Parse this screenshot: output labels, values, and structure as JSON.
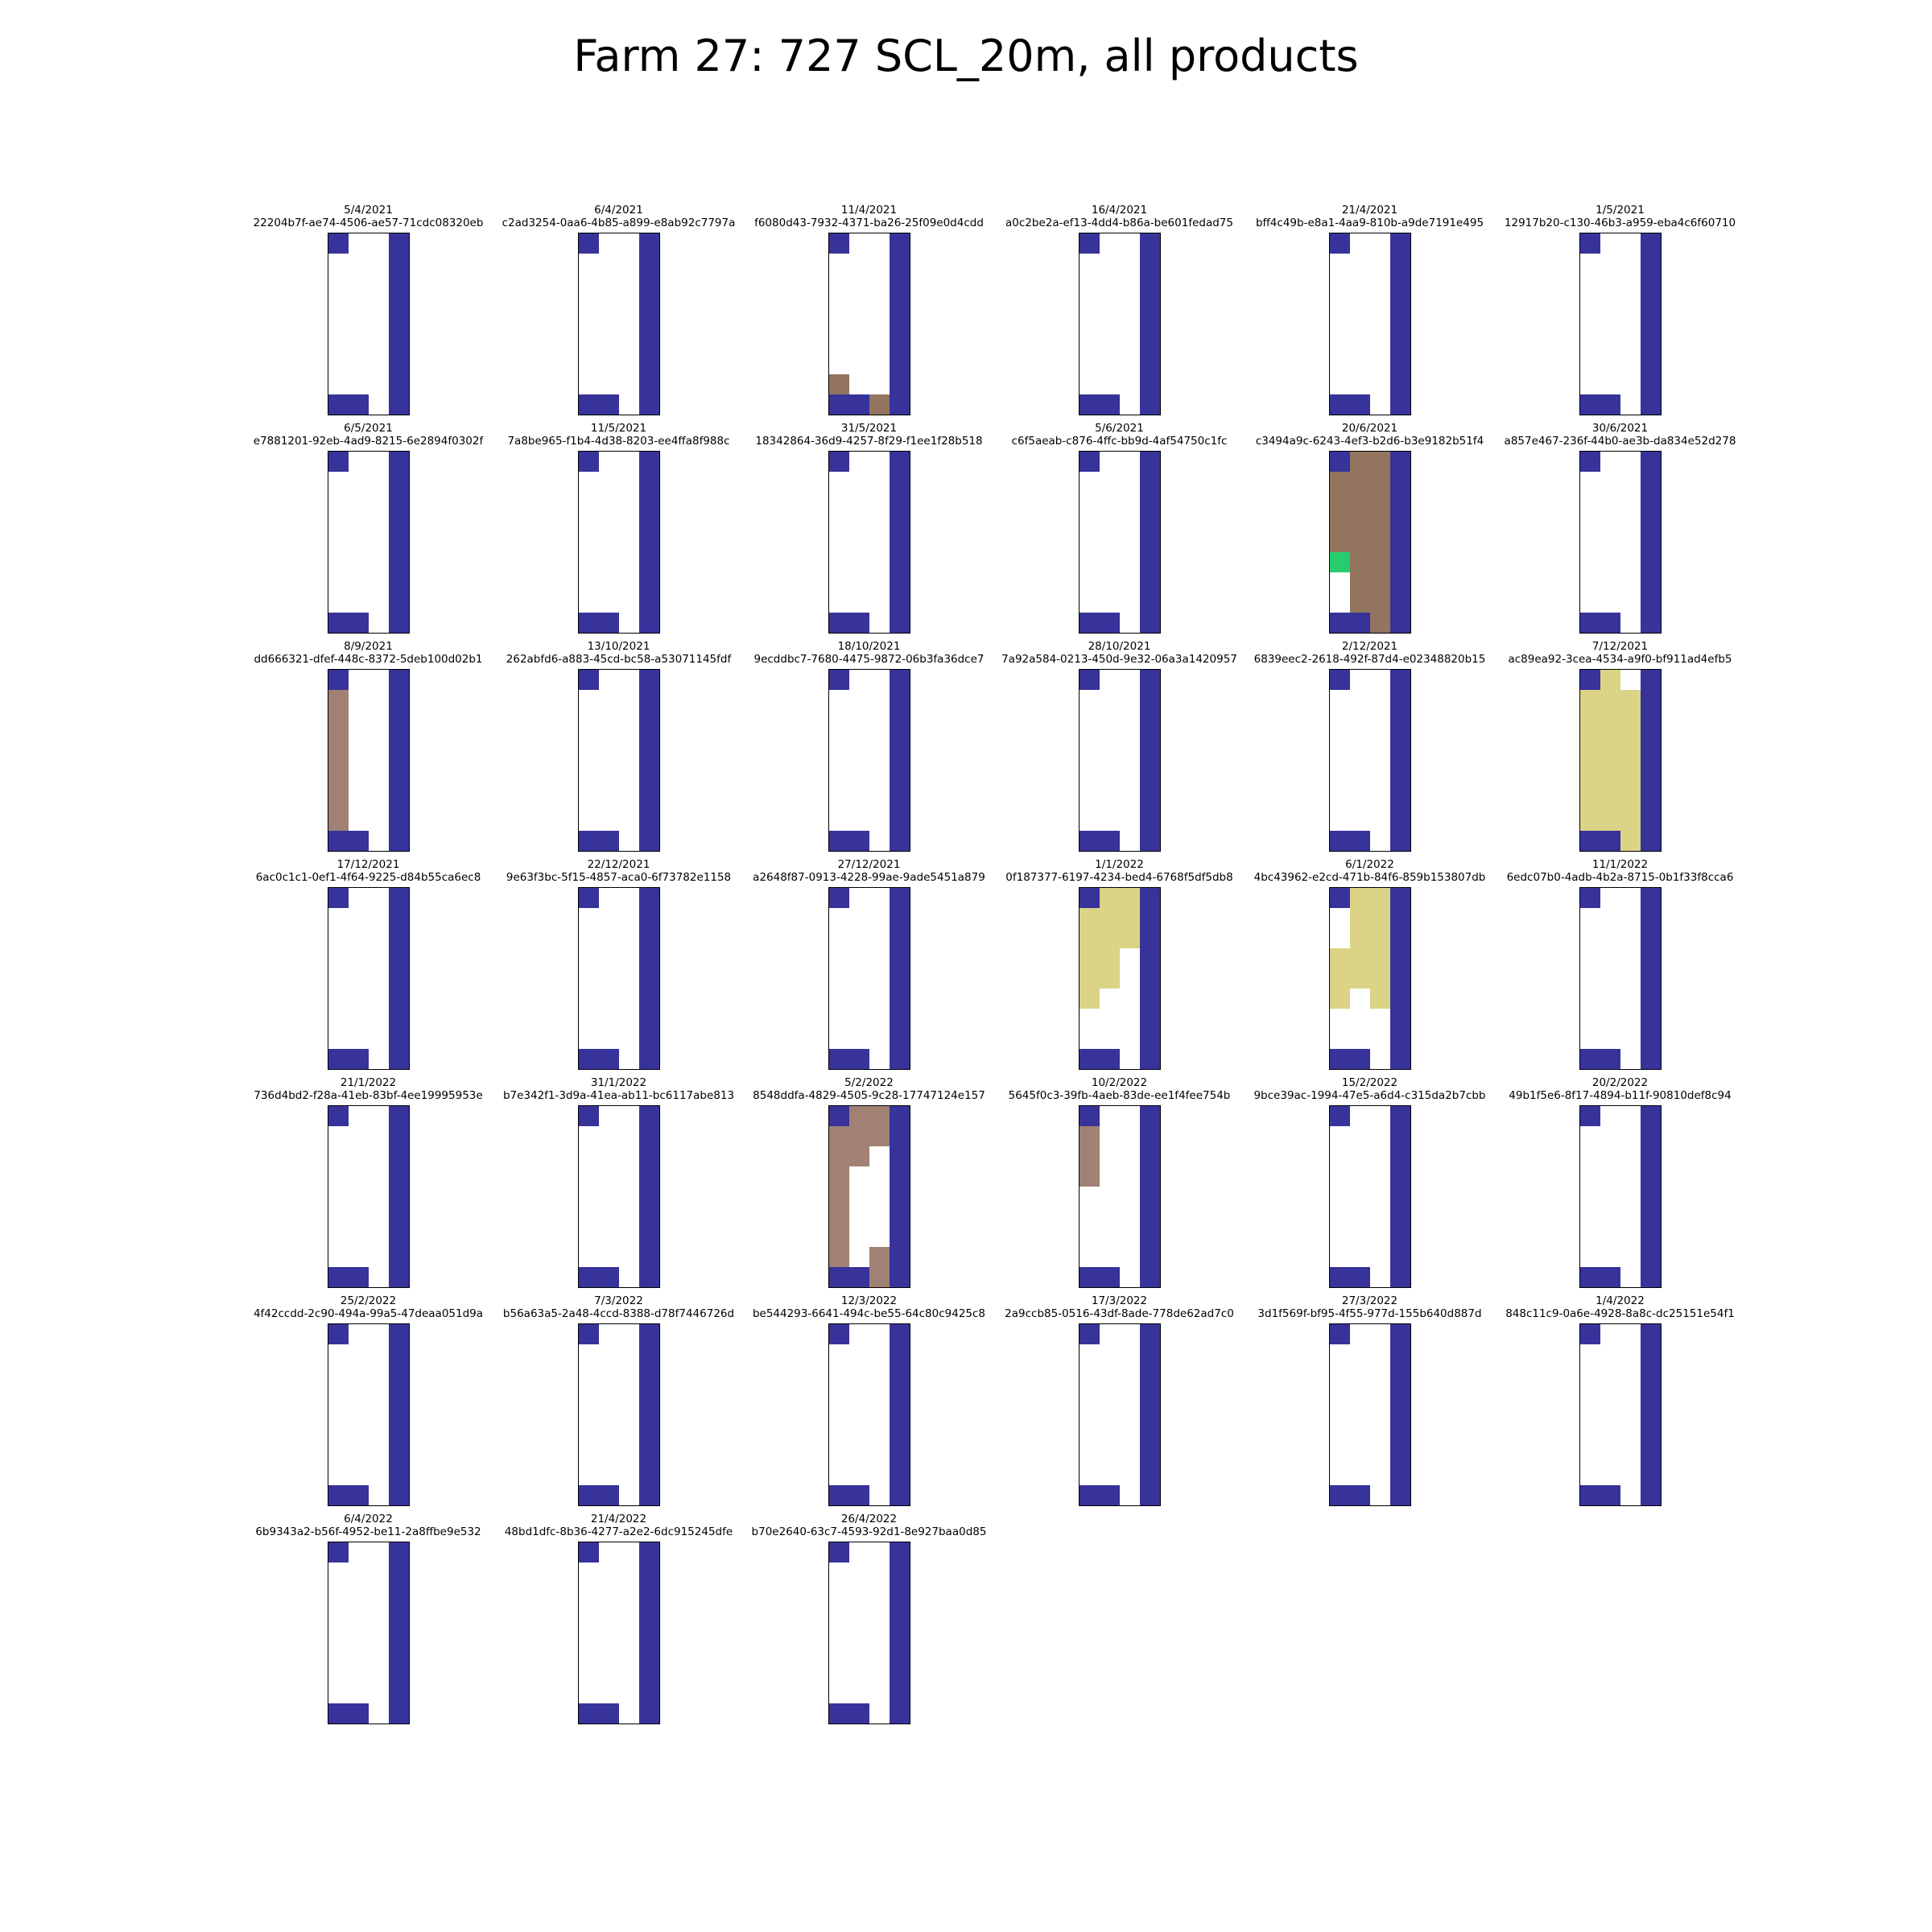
{
  "title": "Farm 27: 727 SCL_20m, all products",
  "chart_data": {
    "type": "heatmap",
    "title": "Farm 27: 727 SCL_20m, all products",
    "grid_rows": 9,
    "grid_cols": 4,
    "class_colors": {
      "0": "#ffffff",
      "1": "#37339a",
      "2": "#93745e",
      "3": "#a08174",
      "4": "#27cc6f",
      "5": "#dbd386"
    },
    "base_pattern": [
      [
        1,
        0,
        0,
        1
      ],
      [
        0,
        0,
        0,
        1
      ],
      [
        0,
        0,
        0,
        1
      ],
      [
        0,
        0,
        0,
        1
      ],
      [
        0,
        0,
        0,
        1
      ],
      [
        0,
        0,
        0,
        1
      ],
      [
        0,
        0,
        0,
        1
      ],
      [
        0,
        0,
        0,
        1
      ],
      [
        1,
        1,
        0,
        1
      ]
    ],
    "panels": [
      {
        "date": "5/4/2021",
        "id": "22204b7f-ae74-4506-ae57-71cdc08320eb",
        "overrides": []
      },
      {
        "date": "6/4/2021",
        "id": "c2ad3254-0aa6-4b85-a899-e8ab92c7797a",
        "overrides": []
      },
      {
        "date": "11/4/2021",
        "id": "f6080d43-7932-4371-ba26-25f09e0d4cdd",
        "overrides": [
          [
            7,
            0,
            2
          ],
          [
            8,
            2,
            2
          ]
        ]
      },
      {
        "date": "16/4/2021",
        "id": "a0c2be2a-ef13-4dd4-b86a-be601fedad75",
        "overrides": []
      },
      {
        "date": "21/4/2021",
        "id": "bff4c49b-e8a1-4aa9-810b-a9de7191e495",
        "overrides": []
      },
      {
        "date": "1/5/2021",
        "id": "12917b20-c130-46b3-a959-eba4c6f60710",
        "overrides": []
      },
      {
        "date": "6/5/2021",
        "id": "e7881201-92eb-4ad9-8215-6e2894f0302f",
        "overrides": []
      },
      {
        "date": "11/5/2021",
        "id": "7a8be965-f1b4-4d38-8203-ee4ffa8f988c",
        "overrides": []
      },
      {
        "date": "31/5/2021",
        "id": "18342864-36d9-4257-8f29-f1ee1f28b518",
        "overrides": []
      },
      {
        "date": "5/6/2021",
        "id": "c6f5aeab-c876-4ffc-bb9d-4af54750c1fc",
        "overrides": []
      },
      {
        "date": "20/6/2021",
        "id": "c3494a9c-6243-4ef3-b2d6-b3e9182b51f4",
        "overrides": [
          [
            0,
            1,
            2
          ],
          [
            0,
            2,
            2
          ],
          [
            1,
            0,
            2
          ],
          [
            1,
            1,
            2
          ],
          [
            1,
            2,
            2
          ],
          [
            2,
            0,
            2
          ],
          [
            2,
            1,
            2
          ],
          [
            2,
            2,
            2
          ],
          [
            3,
            0,
            2
          ],
          [
            3,
            1,
            2
          ],
          [
            3,
            2,
            2
          ],
          [
            4,
            0,
            2
          ],
          [
            4,
            1,
            2
          ],
          [
            4,
            2,
            2
          ],
          [
            5,
            0,
            4
          ],
          [
            5,
            1,
            2
          ],
          [
            5,
            2,
            2
          ],
          [
            6,
            1,
            2
          ],
          [
            6,
            2,
            2
          ],
          [
            7,
            1,
            2
          ],
          [
            7,
            2,
            2
          ],
          [
            8,
            2,
            2
          ]
        ]
      },
      {
        "date": "30/6/2021",
        "id": "a857e467-236f-44b0-ae3b-da834e52d278",
        "overrides": []
      },
      {
        "date": "8/9/2021",
        "id": "dd666321-dfef-448c-8372-5deb100d02b1",
        "overrides": [
          [
            1,
            0,
            3
          ],
          [
            2,
            0,
            3
          ],
          [
            3,
            0,
            3
          ],
          [
            4,
            0,
            3
          ],
          [
            5,
            0,
            3
          ],
          [
            6,
            0,
            3
          ],
          [
            7,
            0,
            3
          ]
        ]
      },
      {
        "date": "13/10/2021",
        "id": "262abfd6-a883-45cd-bc58-a53071145fdf",
        "overrides": []
      },
      {
        "date": "18/10/2021",
        "id": "9ecddbc7-7680-4475-9872-06b3fa36dce7",
        "overrides": []
      },
      {
        "date": "28/10/2021",
        "id": "7a92a584-0213-450d-9e32-06a3a1420957",
        "overrides": []
      },
      {
        "date": "2/12/2021",
        "id": "6839eec2-2618-492f-87d4-e02348820b15",
        "overrides": []
      },
      {
        "date": "7/12/2021",
        "id": "ac89ea92-3cea-4534-a9f0-bf911ad4efb5",
        "overrides": [
          [
            0,
            1,
            5
          ],
          [
            1,
            0,
            5
          ],
          [
            1,
            1,
            5
          ],
          [
            1,
            2,
            5
          ],
          [
            2,
            0,
            5
          ],
          [
            2,
            1,
            5
          ],
          [
            2,
            2,
            5
          ],
          [
            3,
            0,
            5
          ],
          [
            3,
            1,
            5
          ],
          [
            3,
            2,
            5
          ],
          [
            4,
            0,
            5
          ],
          [
            4,
            1,
            5
          ],
          [
            4,
            2,
            5
          ],
          [
            5,
            0,
            5
          ],
          [
            5,
            1,
            5
          ],
          [
            5,
            2,
            5
          ],
          [
            6,
            0,
            5
          ],
          [
            6,
            1,
            5
          ],
          [
            6,
            2,
            5
          ],
          [
            7,
            0,
            5
          ],
          [
            7,
            1,
            5
          ],
          [
            7,
            2,
            5
          ],
          [
            8,
            2,
            5
          ]
        ]
      },
      {
        "date": "17/12/2021",
        "id": "6ac0c1c1-0ef1-4f64-9225-d84b55ca6ec8",
        "overrides": []
      },
      {
        "date": "22/12/2021",
        "id": "9e63f3bc-5f15-4857-aca0-6f73782e1158",
        "overrides": []
      },
      {
        "date": "27/12/2021",
        "id": "a2648f87-0913-4228-99ae-9ade5451a879",
        "overrides": []
      },
      {
        "date": "1/1/2022",
        "id": "0f187377-6197-4234-bed4-6768f5df5db8",
        "overrides": [
          [
            0,
            1,
            5
          ],
          [
            0,
            2,
            5
          ],
          [
            1,
            0,
            5
          ],
          [
            1,
            1,
            5
          ],
          [
            1,
            2,
            5
          ],
          [
            2,
            0,
            5
          ],
          [
            2,
            1,
            5
          ],
          [
            2,
            2,
            5
          ],
          [
            3,
            0,
            5
          ],
          [
            3,
            1,
            5
          ],
          [
            4,
            0,
            5
          ],
          [
            4,
            1,
            5
          ],
          [
            5,
            0,
            5
          ]
        ]
      },
      {
        "date": "6/1/2022",
        "id": "4bc43962-e2cd-471b-84f6-859b153807db",
        "overrides": [
          [
            0,
            1,
            5
          ],
          [
            0,
            2,
            5
          ],
          [
            1,
            1,
            5
          ],
          [
            1,
            2,
            5
          ],
          [
            2,
            1,
            5
          ],
          [
            2,
            2,
            5
          ],
          [
            3,
            0,
            5
          ],
          [
            3,
            1,
            5
          ],
          [
            3,
            2,
            5
          ],
          [
            4,
            0,
            5
          ],
          [
            4,
            1,
            5
          ],
          [
            4,
            2,
            5
          ],
          [
            5,
            0,
            5
          ],
          [
            5,
            2,
            5
          ]
        ]
      },
      {
        "date": "11/1/2022",
        "id": "6edc07b0-4adb-4b2a-8715-0b1f33f8cca6",
        "overrides": []
      },
      {
        "date": "21/1/2022",
        "id": "736d4bd2-f28a-41eb-83bf-4ee19995953e",
        "overrides": []
      },
      {
        "date": "31/1/2022",
        "id": "b7e342f1-3d9a-41ea-ab11-bc6117abe813",
        "overrides": []
      },
      {
        "date": "5/2/2022",
        "id": "8548ddfa-4829-4505-9c28-17747124e157",
        "overrides": [
          [
            0,
            1,
            3
          ],
          [
            0,
            2,
            3
          ],
          [
            1,
            0,
            3
          ],
          [
            1,
            1,
            3
          ],
          [
            1,
            2,
            3
          ],
          [
            2,
            0,
            3
          ],
          [
            2,
            1,
            3
          ],
          [
            3,
            0,
            3
          ],
          [
            4,
            0,
            3
          ],
          [
            5,
            0,
            3
          ],
          [
            6,
            0,
            3
          ],
          [
            7,
            0,
            3
          ],
          [
            7,
            2,
            3
          ],
          [
            8,
            2,
            3
          ]
        ]
      },
      {
        "date": "10/2/2022",
        "id": "5645f0c3-39fb-4aeb-83de-ee1f4fee754b",
        "overrides": [
          [
            1,
            0,
            3
          ],
          [
            2,
            0,
            3
          ],
          [
            3,
            0,
            3
          ]
        ]
      },
      {
        "date": "15/2/2022",
        "id": "9bce39ac-1994-47e5-a6d4-c315da2b7cbb",
        "overrides": []
      },
      {
        "date": "20/2/2022",
        "id": "49b1f5e6-8f17-4894-b11f-90810def8c94",
        "overrides": []
      },
      {
        "date": "25/2/2022",
        "id": "4f42ccdd-2c90-494a-99a5-47deaa051d9a",
        "overrides": []
      },
      {
        "date": "7/3/2022",
        "id": "b56a63a5-2a48-4ccd-8388-d78f7446726d",
        "overrides": []
      },
      {
        "date": "12/3/2022",
        "id": "be544293-6641-494c-be55-64c80c9425c8",
        "overrides": []
      },
      {
        "date": "17/3/2022",
        "id": "2a9ccb85-0516-43df-8ade-778de62ad7c0",
        "overrides": []
      },
      {
        "date": "27/3/2022",
        "id": "3d1f569f-bf95-4f55-977d-155b640d887d",
        "overrides": []
      },
      {
        "date": "1/4/2022",
        "id": "848c11c9-0a6e-4928-8a8c-dc25151e54f1",
        "overrides": []
      },
      {
        "date": "6/4/2022",
        "id": "6b9343a2-b56f-4952-be11-2a8ffbe9e532",
        "overrides": []
      },
      {
        "date": "21/4/2022",
        "id": "48bd1dfc-8b36-4277-a2e2-6dc915245dfe",
        "overrides": []
      },
      {
        "date": "26/4/2022",
        "id": "b70e2640-63c7-4593-92d1-8e927baa0d85",
        "overrides": []
      }
    ]
  }
}
